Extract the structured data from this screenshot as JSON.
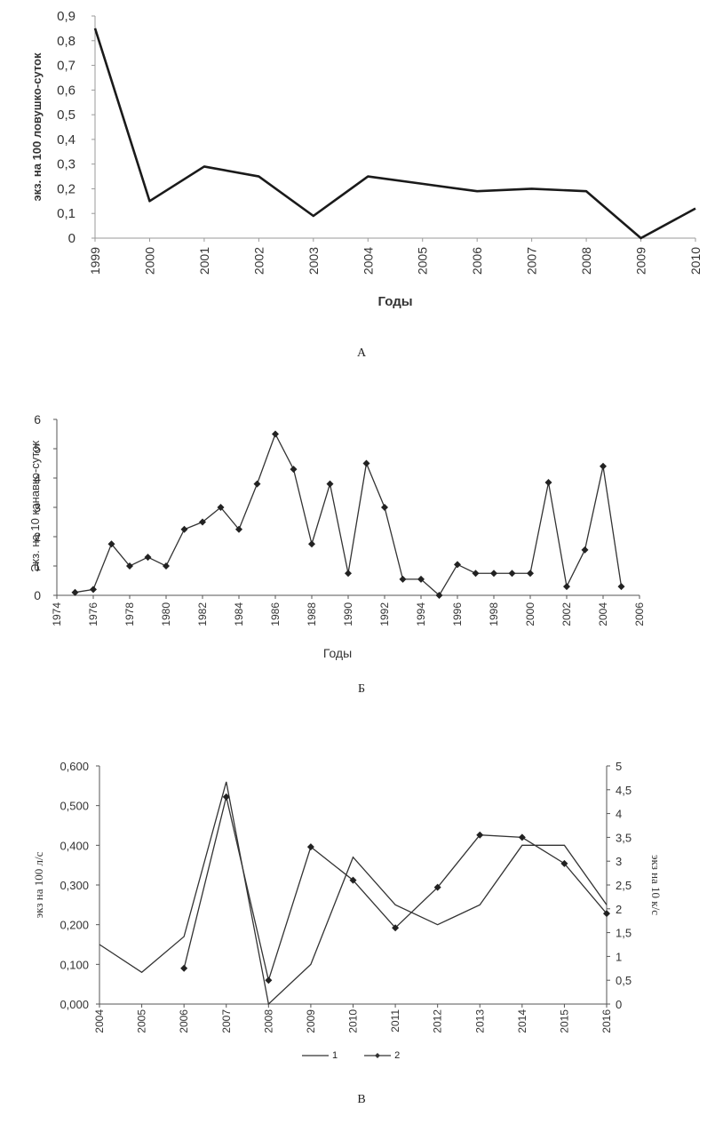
{
  "chart_data": [
    {
      "id": "A",
      "type": "line",
      "caption": "А",
      "xlabel": "Годы",
      "ylabel": "экз. на 100 ловушко-суток",
      "ylim": [
        0,
        0.9
      ],
      "yticks": [
        "0",
        "0,1",
        "0,2",
        "0,3",
        "0,4",
        "0,5",
        "0,6",
        "0,7",
        "0,8",
        "0,9"
      ],
      "categories": [
        "1999",
        "2000",
        "2001",
        "2002",
        "2003",
        "2004",
        "2005",
        "2006",
        "2007",
        "2008",
        "2009",
        "2010"
      ],
      "series": [
        {
          "values": [
            0.85,
            0.15,
            0.29,
            0.25,
            0.09,
            0.25,
            0.22,
            0.19,
            0.2,
            0.19,
            0.0,
            0.12
          ]
        }
      ],
      "grid": false
    },
    {
      "id": "B",
      "type": "line",
      "caption": "Б",
      "xlabel": "Годы",
      "ylabel": "Экз. на 10 канавко-суток",
      "ylim": [
        0,
        6
      ],
      "yticks": [
        "0",
        "1",
        "2",
        "3",
        "4",
        "5",
        "6"
      ],
      "xticks": [
        "1974",
        "1976",
        "1978",
        "1980",
        "1982",
        "1984",
        "1986",
        "1988",
        "1990",
        "1992",
        "1994",
        "1996",
        "1998",
        "2000",
        "2002",
        "2004",
        "2006"
      ],
      "xlim": [
        1974,
        2006
      ],
      "series": [
        {
          "x": [
            1975,
            1976,
            1977,
            1978,
            1979,
            1980,
            1981,
            1982,
            1983,
            1984,
            1985,
            1986,
            1987,
            1988,
            1989,
            1990,
            1991,
            1992,
            1993,
            1994,
            1995,
            1996,
            1997,
            1998,
            1999,
            2000,
            2001,
            2002,
            2003,
            2004,
            2005
          ],
          "y": [
            0.1,
            0.2,
            1.75,
            1.0,
            1.3,
            1.0,
            2.25,
            2.5,
            3.0,
            2.25,
            3.8,
            5.5,
            4.3,
            1.75,
            3.8,
            0.75,
            4.5,
            3.0,
            0.55,
            0.55,
            0.0,
            1.05,
            0.75,
            0.75,
            0.75,
            0.75,
            3.85,
            0.3,
            1.55,
            4.4,
            0.3
          ]
        }
      ],
      "grid": false
    },
    {
      "id": "C",
      "type": "line",
      "caption": "В",
      "ylabel": "экз на 100 л/с",
      "y2label": "экз на 10 к/с",
      "ylim": [
        0,
        0.6
      ],
      "y2lim": [
        0,
        5
      ],
      "yticks": [
        "0,000",
        "0,100",
        "0,200",
        "0,300",
        "0,400",
        "0,500",
        "0,600"
      ],
      "y2ticks": [
        "0",
        "0,5",
        "1",
        "1,5",
        "2",
        "2,5",
        "3",
        "3,5",
        "4",
        "4,5",
        "5"
      ],
      "categories": [
        "2004",
        "2005",
        "2006",
        "2007",
        "2008",
        "2009",
        "2010",
        "2011",
        "2012",
        "2013",
        "2014",
        "2015",
        "2016"
      ],
      "series": [
        {
          "name": "1",
          "axis": "left",
          "marker": "none",
          "values": [
            0.15,
            0.08,
            0.17,
            0.56,
            0.0,
            0.1,
            0.37,
            0.25,
            0.2,
            0.25,
            0.4,
            0.4,
            0.25
          ]
        },
        {
          "name": "2",
          "axis": "right",
          "marker": "diamond",
          "values": [
            null,
            null,
            0.75,
            4.35,
            0.5,
            3.3,
            2.6,
            1.6,
            2.45,
            3.55,
            3.5,
            2.95,
            1.9
          ]
        }
      ],
      "legend": "bottom",
      "grid": false
    }
  ]
}
